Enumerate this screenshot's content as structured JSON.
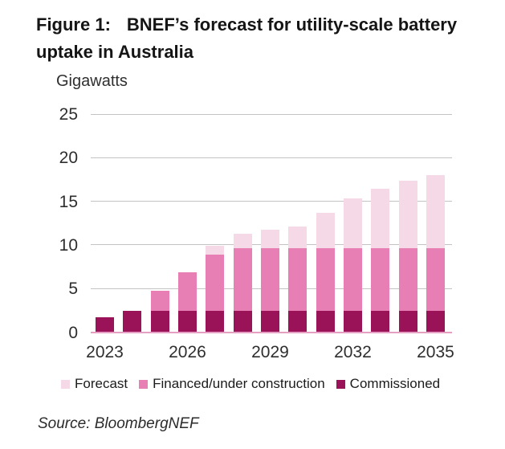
{
  "header": {
    "figure_label": "Figure 1:",
    "title_text": "BNEF’s forecast for utility-scale battery uptake in Australia"
  },
  "source": {
    "text": "Source: BloombergNEF"
  },
  "legend": {
    "items": [
      {
        "key": "forecast",
        "label": "Forecast",
        "color": "#F6D9E7"
      },
      {
        "key": "financed",
        "label": "Financed/under construction",
        "color": "#E77FB5"
      },
      {
        "key": "commissioned",
        "label": "Commissioned",
        "color": "#9A1258"
      }
    ]
  },
  "chart_data": {
    "type": "bar",
    "stacked": true,
    "title": "Figure 1: BNEF’s forecast for utility-scale battery uptake in Australia",
    "ylabel": "Gigawatts",
    "unit_label": "Gigawatts",
    "categories": [
      "2023",
      "2024",
      "2025",
      "2026",
      "2027",
      "2028",
      "2029",
      "2030",
      "2031",
      "2032",
      "2033",
      "2034",
      "2035"
    ],
    "series": [
      {
        "name": "Commissioned",
        "color": "#9A1258",
        "values": [
          1.7,
          2.4,
          2.4,
          2.4,
          2.4,
          2.4,
          2.4,
          2.4,
          2.4,
          2.4,
          2.4,
          2.4,
          2.4
        ]
      },
      {
        "name": "Financed/under construction",
        "color": "#E77FB5",
        "values": [
          0,
          0,
          2.3,
          4.5,
          6.5,
          7.2,
          7.2,
          7.2,
          7.2,
          7.2,
          7.2,
          7.2,
          7.2
        ]
      },
      {
        "name": "Forecast",
        "color": "#F6D9E7",
        "values": [
          0,
          0,
          0,
          0,
          1.0,
          1.7,
          2.1,
          2.5,
          4.1,
          5.7,
          6.8,
          7.8,
          8.4
        ]
      }
    ],
    "totals": [
      1.7,
      2.4,
      4.7,
      6.9,
      9.9,
      11.3,
      11.7,
      12.1,
      13.7,
      15.3,
      16.4,
      17.4,
      18.0
    ],
    "ylim": [
      0,
      25
    ],
    "yticks": [
      0,
      5,
      10,
      15,
      20,
      25
    ],
    "xtick_labels": [
      "2023",
      "2026",
      "2029",
      "2032",
      "2035"
    ],
    "xtick_indices": [
      0,
      3,
      6,
      9,
      12
    ],
    "grid": "horizontal",
    "legend_position": "bottom"
  }
}
